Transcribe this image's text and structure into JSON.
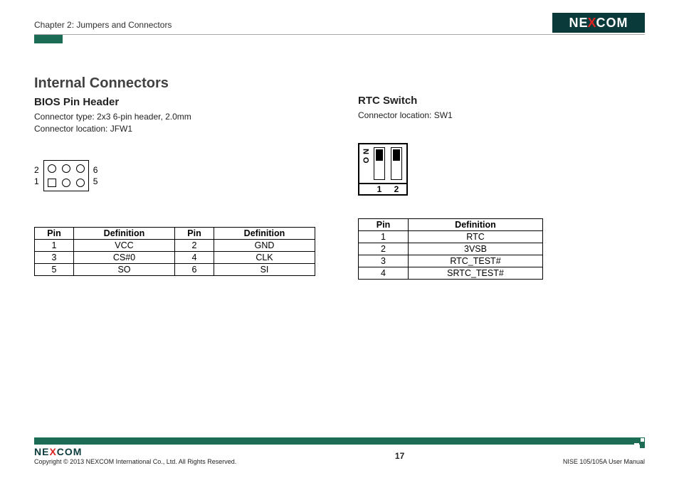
{
  "header": {
    "chapter": "Chapter 2: Jumpers and Connectors",
    "logo_text_pre": "NE",
    "logo_text_x": "X",
    "logo_text_post": "COM"
  },
  "section": {
    "title": "Internal Connectors"
  },
  "left": {
    "title": "BIOS Pin Header",
    "type_line": "Connector type: 2x3 6-pin header, 2.0mm",
    "location_line": "Connector location: JFW1",
    "labels": {
      "tl": "2",
      "bl": "1",
      "tr": "6",
      "br": "5"
    },
    "table": {
      "headers": [
        "Pin",
        "Definition",
        "Pin",
        "Definition"
      ],
      "rows": [
        [
          "1",
          "VCC",
          "2",
          "GND"
        ],
        [
          "3",
          "CS#0",
          "4",
          "CLK"
        ],
        [
          "5",
          "SO",
          "6",
          "SI"
        ]
      ]
    }
  },
  "right": {
    "title": "RTC Switch",
    "location_line": "Connector location: SW1",
    "switch": {
      "on_label": "ON",
      "nums": [
        "1",
        "2"
      ]
    },
    "table": {
      "headers": [
        "Pin",
        "Definition"
      ],
      "rows": [
        [
          "1",
          "RTC"
        ],
        [
          "2",
          "3VSB"
        ],
        [
          "3",
          "RTC_TEST#"
        ],
        [
          "4",
          "SRTC_TEST#"
        ]
      ]
    }
  },
  "footer": {
    "copyright": "Copyright © 2013 NEXCOM International Co., Ltd. All Rights Reserved.",
    "page": "17",
    "doc": "NISE 105/105A User Manual",
    "logo_pre": "NE",
    "logo_x": "X",
    "logo_post": "COM"
  },
  "colors": {
    "accent": "#1c6b55",
    "logo_bg": "#0a3a3a",
    "logo_x": "#d22"
  }
}
